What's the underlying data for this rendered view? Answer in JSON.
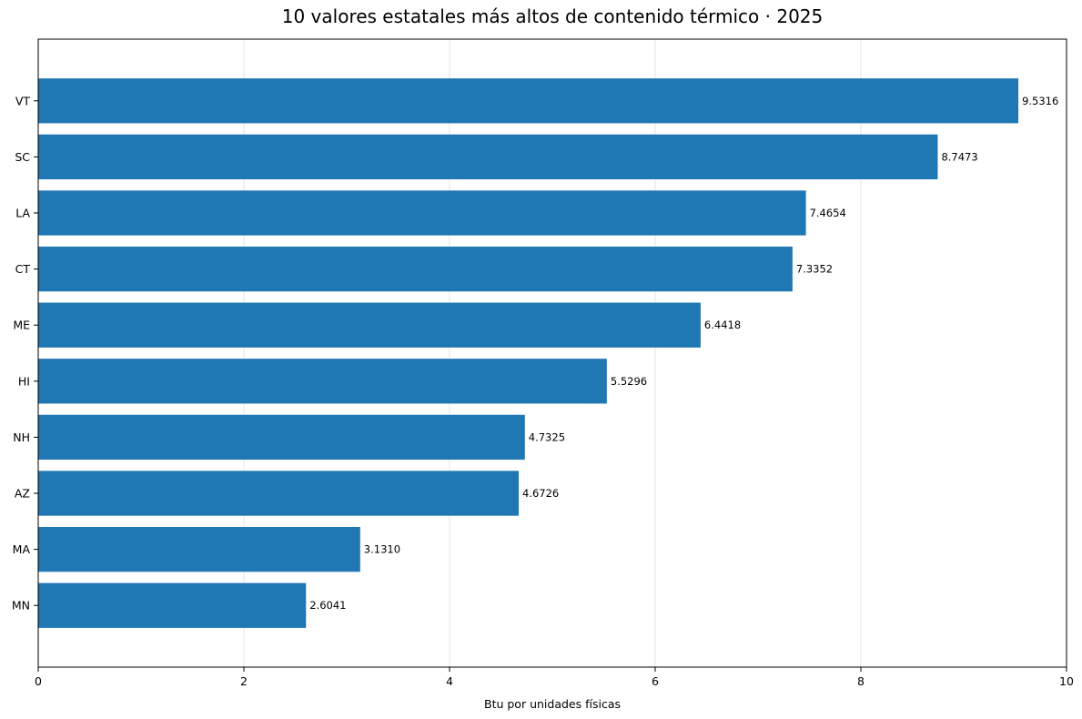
{
  "chart_data": {
    "type": "bar",
    "orientation": "horizontal",
    "title": "10 valores estatales más altos de contenido térmico · 2025",
    "xlabel": "Btu por unidades físicas",
    "ylabel": "",
    "categories": [
      "VT",
      "SC",
      "LA",
      "CT",
      "ME",
      "HI",
      "NH",
      "AZ",
      "MA",
      "MN"
    ],
    "values": [
      9.5316,
      8.7473,
      7.4654,
      7.3352,
      6.4418,
      5.5296,
      4.7325,
      4.6726,
      3.131,
      2.6041
    ],
    "value_labels": [
      "9.5316",
      "8.7473",
      "7.4654",
      "7.3352",
      "6.4418",
      "5.5296",
      "4.7325",
      "4.6726",
      "3.1310",
      "2.6041"
    ],
    "xlim": [
      0,
      10
    ],
    "xticks": [
      0,
      2,
      4,
      6,
      8,
      10
    ],
    "xtick_labels": [
      "0",
      "2",
      "4",
      "6",
      "8",
      "10"
    ],
    "grid": "x-axis vertical lines",
    "legend": "none",
    "bar_color": "#1f77b4"
  }
}
